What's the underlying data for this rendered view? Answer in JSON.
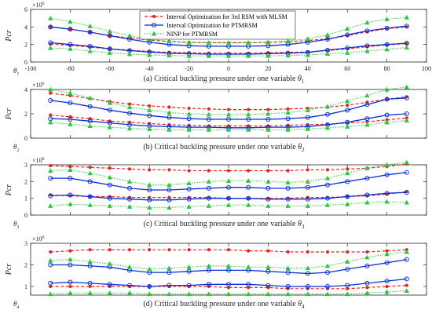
{
  "chart_data": [
    {
      "type": "line",
      "caption_text": "(a) Critical buckling pressure under one variable ",
      "caption_var": "θ",
      "caption_sub": "1",
      "xvar": "θ",
      "xvar_sub": "1",
      "ylabel": "Pcr",
      "multiplier": "×10",
      "multiplier_exp": "6",
      "xlim": [
        -100,
        100
      ],
      "ylim": [
        0,
        6
      ],
      "yticks": [
        0,
        2,
        4,
        6
      ],
      "xticks": [
        -100,
        -80,
        -60,
        -40,
        -20,
        0,
        20,
        40,
        60,
        80,
        100
      ],
      "x": [
        -90,
        -80,
        -70,
        -60,
        -50,
        -40,
        -30,
        -20,
        -10,
        0,
        10,
        20,
        30,
        40,
        50,
        60,
        70,
        80,
        90
      ],
      "series": [
        {
          "name": "Interval Optimization for 3rd RSM with MLSM",
          "values": [
            4.0,
            3.75,
            3.4,
            3.0,
            2.75,
            2.5,
            2.35,
            2.25,
            2.2,
            2.2,
            2.2,
            2.25,
            2.3,
            2.45,
            2.65,
            3.0,
            3.45,
            3.8,
            4.0
          ]
        },
        {
          "name": "",
          "values": [
            2.05,
            1.9,
            1.7,
            1.5,
            1.35,
            1.2,
            1.1,
            1.05,
            1.0,
            1.0,
            1.0,
            1.05,
            1.1,
            1.15,
            1.3,
            1.5,
            1.75,
            1.95,
            2.1
          ]
        },
        {
          "name": "Interval Optimization for PTMRSM",
          "values": [
            4.0,
            3.75,
            3.4,
            3.0,
            2.6,
            2.25,
            2.0,
            1.85,
            1.8,
            1.8,
            1.8,
            1.85,
            2.0,
            2.25,
            2.6,
            3.1,
            3.55,
            3.85,
            4.1
          ]
        },
        {
          "name": "",
          "values": [
            2.2,
            2.0,
            1.8,
            1.5,
            1.3,
            1.15,
            1.0,
            0.95,
            0.9,
            0.9,
            0.9,
            0.95,
            1.0,
            1.1,
            1.35,
            1.6,
            1.85,
            2.0,
            2.15
          ]
        },
        {
          "name": "NINP for PTMRSM",
          "values": [
            5.0,
            4.6,
            4.1,
            3.5,
            3.0,
            2.6,
            2.35,
            2.2,
            2.2,
            2.15,
            2.2,
            2.25,
            2.4,
            2.65,
            3.1,
            3.8,
            4.5,
            4.9,
            5.1
          ]
        },
        {
          "name": "",
          "values": [
            1.6,
            1.5,
            1.25,
            1.05,
            0.9,
            0.8,
            0.75,
            0.7,
            0.7,
            0.7,
            0.7,
            0.7,
            0.75,
            0.8,
            0.95,
            1.05,
            1.25,
            1.45,
            1.65
          ]
        }
      ]
    },
    {
      "type": "line",
      "caption_text": "(b) Critical buckling pressure under one variable ",
      "caption_var": "θ",
      "caption_sub": "2",
      "xvar": "θ",
      "xvar_sub": "2",
      "ylabel": "Pcr",
      "multiplier": "×10",
      "multiplier_exp": "6",
      "xlim": [
        -100,
        100
      ],
      "ylim": [
        0,
        4
      ],
      "yticks": [
        0,
        2,
        4
      ],
      "x": [
        -90,
        -80,
        -70,
        -60,
        -50,
        -40,
        -30,
        -20,
        -10,
        0,
        10,
        20,
        30,
        40,
        50,
        60,
        70,
        80,
        90
      ],
      "series": [
        {
          "name": "Interval Optimization for 3rd RSM with MLSM",
          "values": [
            3.7,
            3.5,
            3.25,
            3.0,
            2.8,
            2.65,
            2.55,
            2.45,
            2.4,
            2.35,
            2.35,
            2.35,
            2.4,
            2.45,
            2.55,
            2.7,
            2.95,
            3.2,
            3.4
          ]
        },
        {
          "name": "",
          "values": [
            1.9,
            1.75,
            1.6,
            1.4,
            1.3,
            1.2,
            1.1,
            1.05,
            1.0,
            1.0,
            1.0,
            1.0,
            1.05,
            1.1,
            1.15,
            1.25,
            1.35,
            1.5,
            1.65
          ]
        },
        {
          "name": "Interval Optimization for PTMRSM",
          "values": [
            3.1,
            2.9,
            2.6,
            2.3,
            2.05,
            1.85,
            1.7,
            1.6,
            1.55,
            1.55,
            1.55,
            1.55,
            1.6,
            1.7,
            1.95,
            2.3,
            2.75,
            3.2,
            3.3
          ]
        },
        {
          "name": "",
          "values": [
            1.6,
            1.55,
            1.4,
            1.25,
            1.1,
            1.0,
            0.95,
            0.9,
            0.9,
            0.85,
            0.85,
            0.9,
            0.9,
            0.95,
            1.1,
            1.3,
            1.6,
            1.9,
            2.0
          ]
        },
        {
          "name": "NINP for PTMRSM",
          "values": [
            4.0,
            3.7,
            3.3,
            2.9,
            2.55,
            2.3,
            2.1,
            2.0,
            1.95,
            1.95,
            1.95,
            2.0,
            2.1,
            2.3,
            2.6,
            3.05,
            3.5,
            4.0,
            4.2
          ]
        },
        {
          "name": "",
          "values": [
            1.3,
            1.15,
            1.0,
            0.9,
            0.8,
            0.75,
            0.7,
            0.7,
            0.7,
            0.7,
            0.7,
            0.7,
            0.7,
            0.75,
            0.85,
            0.95,
            1.1,
            1.3,
            1.45
          ]
        }
      ]
    },
    {
      "type": "line",
      "caption_text": "(c) Critical buckling pressure under one variable ",
      "caption_var": "θ",
      "caption_sub": "3",
      "xvar": "θ",
      "xvar_sub": "3",
      "ylabel": "Pcr",
      "multiplier": "×10",
      "multiplier_exp": "6",
      "xlim": [
        -100,
        100
      ],
      "ylim": [
        0,
        3
      ],
      "yticks": [
        0,
        1,
        2,
        3
      ],
      "x": [
        -90,
        -80,
        -70,
        -60,
        -50,
        -40,
        -30,
        -20,
        -10,
        0,
        10,
        20,
        30,
        40,
        50,
        60,
        70,
        80,
        90
      ],
      "series": [
        {
          "name": "Interval Optimization for 3rd RSM with MLSM",
          "values": [
            2.95,
            2.9,
            2.85,
            2.8,
            2.75,
            2.7,
            2.7,
            2.65,
            2.65,
            2.65,
            2.65,
            2.65,
            2.65,
            2.7,
            2.7,
            2.75,
            2.8,
            2.9,
            3.05
          ]
        },
        {
          "name": "",
          "values": [
            1.2,
            1.15,
            1.1,
            1.1,
            1.05,
            1.05,
            1.05,
            1.05,
            1.05,
            1.0,
            1.0,
            1.0,
            1.0,
            1.05,
            1.05,
            1.1,
            1.15,
            1.25,
            1.4
          ]
        },
        {
          "name": "Interval Optimization for PTMRSM",
          "values": [
            2.2,
            2.2,
            2.0,
            1.8,
            1.6,
            1.5,
            1.5,
            1.55,
            1.6,
            1.65,
            1.65,
            1.6,
            1.6,
            1.65,
            1.8,
            2.0,
            2.2,
            2.4,
            2.55
          ]
        },
        {
          "name": "",
          "values": [
            1.15,
            1.2,
            1.1,
            1.0,
            0.95,
            0.9,
            0.9,
            0.95,
            1.0,
            1.0,
            1.0,
            0.95,
            0.95,
            0.95,
            1.0,
            1.1,
            1.2,
            1.3,
            1.35
          ]
        },
        {
          "name": "NINP for PTMRSM",
          "values": [
            2.65,
            2.7,
            2.5,
            2.25,
            2.0,
            1.8,
            1.8,
            1.9,
            2.0,
            2.05,
            2.05,
            2.0,
            1.95,
            2.0,
            2.2,
            2.5,
            2.8,
            3.0,
            3.15
          ]
        },
        {
          "name": "",
          "values": [
            0.55,
            0.65,
            0.6,
            0.55,
            0.5,
            0.45,
            0.45,
            0.5,
            0.55,
            0.6,
            0.6,
            0.55,
            0.55,
            0.55,
            0.6,
            0.65,
            0.75,
            0.8,
            0.75
          ]
        }
      ]
    },
    {
      "type": "line",
      "caption_text": "(d) Critical buckling pressure under one variable ",
      "caption_var": "θ",
      "caption_sub": "4",
      "xvar": "θ",
      "xvar_sub": "4",
      "ylabel": "Pcr",
      "multiplier": "×10",
      "multiplier_exp": "6",
      "xlim": [
        -100,
        100
      ],
      "ylim": [
        0.6,
        3
      ],
      "yticks": [
        1,
        2,
        3
      ],
      "x": [
        -90,
        -80,
        -70,
        -60,
        -50,
        -40,
        -30,
        -20,
        -10,
        0,
        10,
        20,
        30,
        40,
        50,
        60,
        70,
        80,
        90
      ],
      "series": [
        {
          "name": "Interval Optimization for 3rd RSM with MLSM",
          "values": [
            2.6,
            2.65,
            2.7,
            2.7,
            2.7,
            2.7,
            2.7,
            2.7,
            2.7,
            2.7,
            2.65,
            2.65,
            2.6,
            2.6,
            2.6,
            2.6,
            2.6,
            2.65,
            2.7
          ]
        },
        {
          "name": "",
          "values": [
            1.0,
            1.0,
            1.0,
            1.0,
            1.0,
            1.0,
            1.0,
            1.0,
            1.0,
            0.95,
            0.95,
            0.95,
            0.9,
            0.9,
            0.9,
            0.9,
            0.95,
            1.0,
            1.05
          ]
        },
        {
          "name": "Interval Optimization for PTMRSM",
          "values": [
            2.0,
            2.0,
            1.95,
            1.9,
            1.75,
            1.65,
            1.65,
            1.7,
            1.75,
            1.75,
            1.75,
            1.7,
            1.65,
            1.6,
            1.65,
            1.8,
            1.95,
            2.1,
            2.25
          ]
        },
        {
          "name": "",
          "values": [
            1.15,
            1.2,
            1.15,
            1.1,
            1.05,
            1.0,
            1.05,
            1.05,
            1.1,
            1.1,
            1.1,
            1.05,
            1.0,
            1.0,
            1.0,
            1.05,
            1.15,
            1.25,
            1.35
          ]
        },
        {
          "name": "NINP for PTMRSM",
          "values": [
            2.2,
            2.25,
            2.15,
            2.05,
            1.9,
            1.8,
            1.85,
            1.9,
            1.95,
            1.95,
            1.9,
            1.9,
            1.85,
            1.85,
            1.95,
            2.15,
            2.35,
            2.5,
            2.6
          ]
        },
        {
          "name": "",
          "values": [
            0.65,
            0.7,
            0.7,
            0.7,
            0.7,
            0.65,
            0.65,
            0.65,
            0.65,
            0.65,
            0.65,
            0.65,
            0.65,
            0.65,
            0.65,
            0.65,
            0.7,
            0.75,
            0.8
          ]
        }
      ]
    }
  ],
  "styles": [
    {
      "color": "#e8241f",
      "dash": "4,2.5",
      "marker": "dot"
    },
    {
      "color": "#e8241f",
      "dash": "4,2.5",
      "marker": "dot"
    },
    {
      "color": "#0a2fd6",
      "dash": "",
      "marker": "circle"
    },
    {
      "color": "#0a2fd6",
      "dash": "",
      "marker": "circle"
    },
    {
      "color": "#27c93a",
      "dash": "1.3,2",
      "marker": "triangle"
    },
    {
      "color": "#27c93a",
      "dash": "1.3,2",
      "marker": "triangle"
    }
  ],
  "legend": {
    "placement": "top-center",
    "items": [
      {
        "label": "Interval Optimization for 3rd RSM with MLSM",
        "style": 0
      },
      {
        "label": "Interval Optimization for PTMRSM",
        "style": 2
      },
      {
        "label": "NINP for PTMRSM",
        "style": 4
      }
    ]
  }
}
